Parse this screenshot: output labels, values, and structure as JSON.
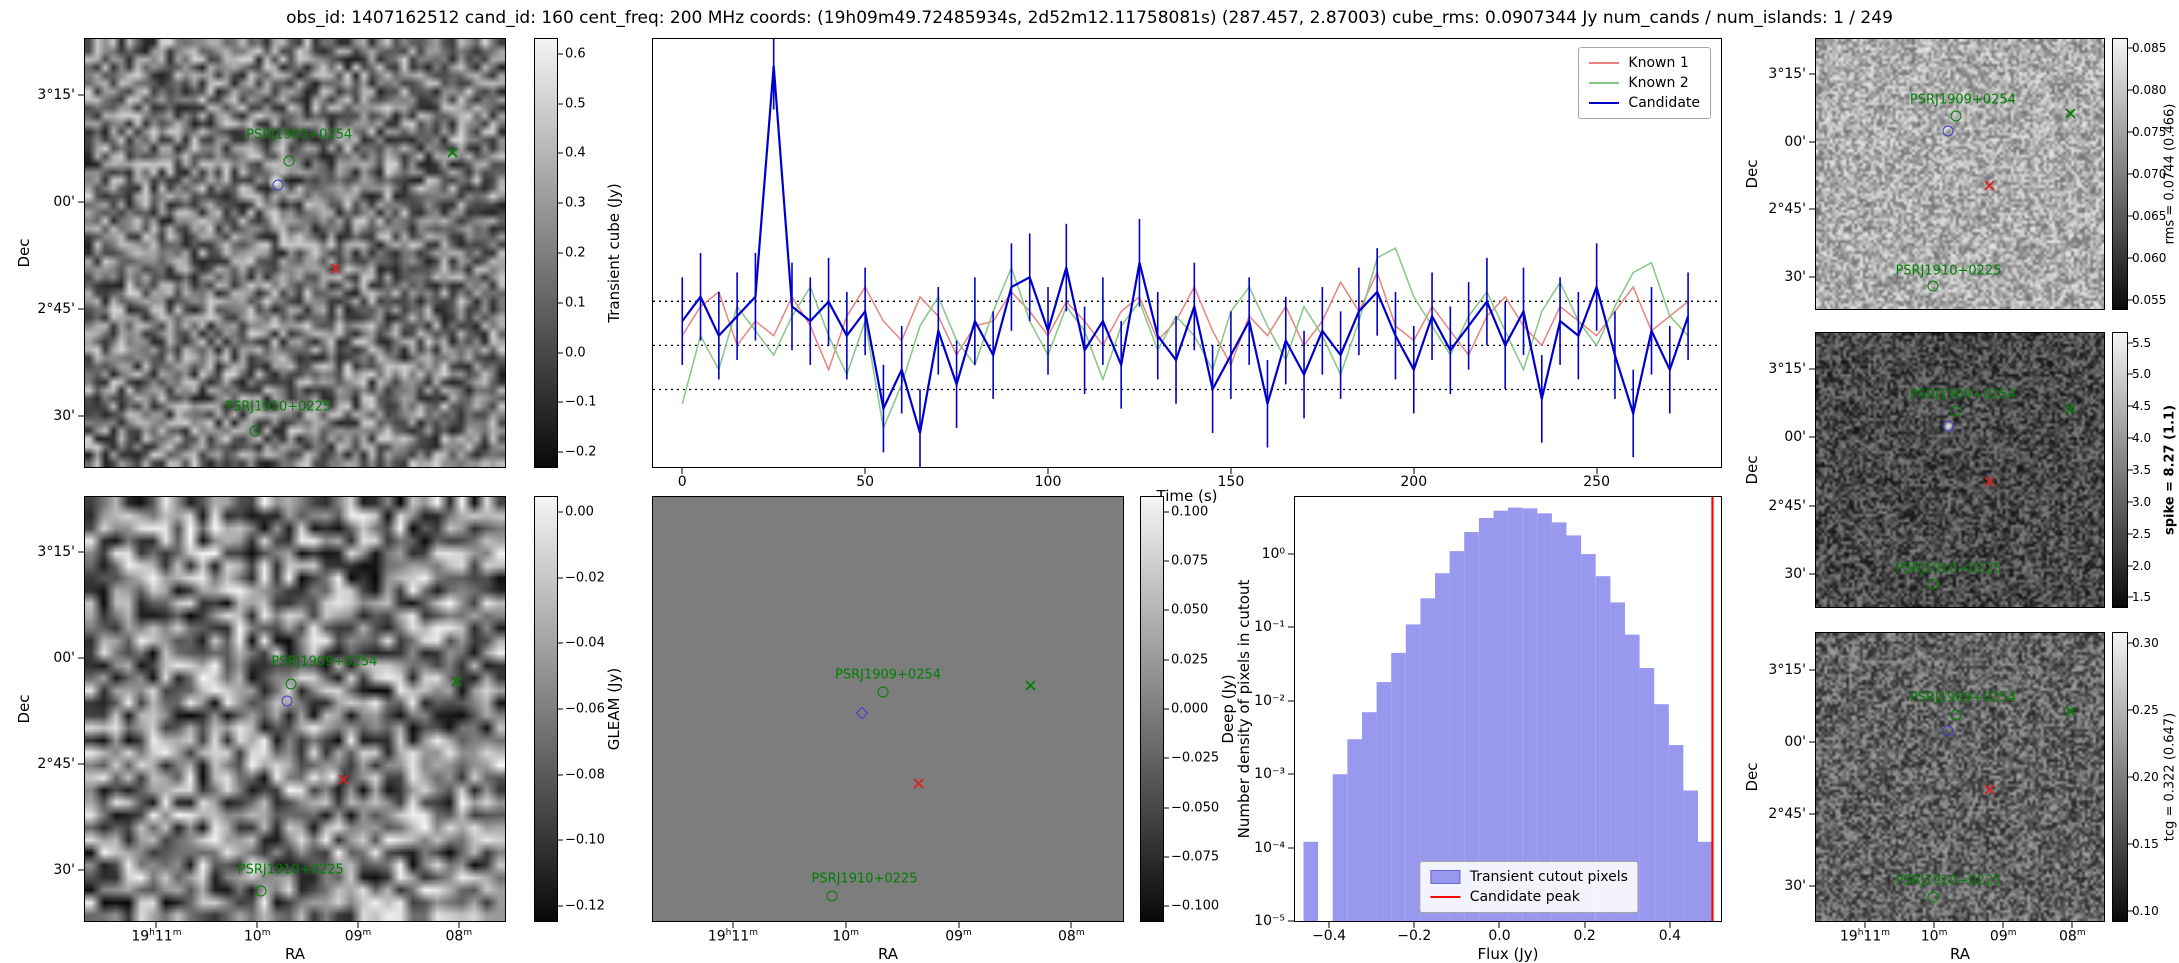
{
  "title": "obs_id: 1407162512 cand_id: 160 cent_freq: 200 MHz coords: (19h09m49.72485934s, 2d52m12.11758081s) (287.457, 2.87003) cube_rms: 0.0907344 Jy num_cands / num_islands: 1 / 249",
  "colors": {
    "known1": "#e8837e",
    "known2": "#85c785",
    "candidate": "#0000cc",
    "hist_fill": "#9898ee",
    "hist_line": "#ff0000",
    "marker_green": "#008000",
    "marker_red": "#e02020",
    "marker_blue": "#3b3bd0",
    "deep_gray": "#7d7d7d"
  },
  "axes": {
    "dec_label": "Dec",
    "ra_label": "RA",
    "dec_ticks": [
      "3°15'",
      "00'",
      "2°45'",
      "30'"
    ],
    "ra_ticks": [
      "19h11m",
      "10m",
      "09m",
      "08m"
    ]
  },
  "panels": {
    "transient_cube": {
      "colorbar_label": "Transient cube (Jy)",
      "colorbar_ticks": [
        "0.6",
        "0.5",
        "0.4",
        "0.3",
        "0.2",
        "0.1",
        "0.0",
        "−0.1",
        "−0.2"
      ]
    },
    "gleam": {
      "colorbar_label": "GLEAM (Jy)",
      "colorbar_ticks": [
        "0.00",
        "−0.02",
        "−0.04",
        "−0.06",
        "−0.08",
        "−0.10",
        "−0.12"
      ]
    },
    "deep": {
      "colorbar_label": "Deep (Jy)",
      "colorbar_ticks": [
        "0.100",
        "0.075",
        "0.050",
        "0.025",
        "0.000",
        "−0.025",
        "−0.050",
        "−0.075",
        "−0.100"
      ]
    },
    "rms": {
      "colorbar_label": "rms = 0.0744 (0.466)",
      "colorbar_ticks": [
        "0.085",
        "0.080",
        "0.075",
        "0.070",
        "0.065",
        "0.060",
        "0.055"
      ]
    },
    "spike": {
      "colorbar_label": "spike = 8.27 (1.1)",
      "bold": true,
      "colorbar_ticks": [
        "5.5",
        "5.0",
        "4.5",
        "4.0",
        "3.5",
        "3.0",
        "2.5",
        "2.0",
        "1.5"
      ]
    },
    "tcg": {
      "colorbar_label": "tcg = 0.322 (0.647)",
      "colorbar_ticks": [
        "0.30",
        "0.25",
        "0.20",
        "0.15",
        "0.10"
      ]
    }
  },
  "sky_markers": [
    {
      "kind": "label",
      "text": "PSRJ1909+0254",
      "color": "marker_green",
      "x": 51,
      "y": 22.5
    },
    {
      "kind": "circle",
      "color": "marker_green",
      "x": 48.5,
      "y": 28.5
    },
    {
      "kind": "x",
      "color": "marker_green",
      "x": 86,
      "y": 25
    },
    {
      "kind": "circle",
      "color": "marker_blue",
      "x": 46,
      "y": 34
    },
    {
      "kind": "x",
      "color": "marker_red",
      "x": 58,
      "y": 52
    },
    {
      "kind": "label",
      "text": "PSRJ1910+0225",
      "color": "marker_green",
      "x": 46,
      "y": 86
    },
    {
      "kind": "circle",
      "color": "marker_green",
      "x": 40.5,
      "y": 91.5
    }
  ],
  "gleam_markers": [
    {
      "kind": "label",
      "text": "PSRJ1909+0254",
      "color": "marker_green",
      "x": 57,
      "y": 39
    },
    {
      "kind": "circle",
      "color": "marker_green",
      "x": 49,
      "y": 44
    },
    {
      "kind": "x",
      "color": "marker_green",
      "x": 87,
      "y": 42
    },
    {
      "kind": "circle",
      "color": "marker_blue",
      "x": 48,
      "y": 48
    },
    {
      "kind": "x",
      "color": "marker_red",
      "x": 60,
      "y": 65
    },
    {
      "kind": "label",
      "text": "PSRJ1910+0225",
      "color": "marker_green",
      "x": 49,
      "y": 88
    },
    {
      "kind": "circle",
      "color": "marker_green",
      "x": 42,
      "y": 93
    }
  ],
  "deep_markers": [
    {
      "kind": "label",
      "text": "PSRJ1909+0254",
      "color": "marker_green",
      "x": 50,
      "y": 42
    },
    {
      "kind": "circle",
      "color": "marker_green",
      "x": 49,
      "y": 46
    },
    {
      "kind": "x",
      "color": "marker_green",
      "x": 79,
      "y": 43
    },
    {
      "kind": "diamond",
      "color": "marker_blue",
      "x": 44.5,
      "y": 51
    },
    {
      "kind": "x",
      "color": "marker_red",
      "x": 55,
      "y": 66
    },
    {
      "kind": "label",
      "text": "PSRJ1910+0225",
      "color": "marker_green",
      "x": 45,
      "y": 90
    },
    {
      "kind": "circle",
      "color": "marker_green",
      "x": 38,
      "y": 94
    }
  ],
  "chart_data": [
    {
      "type": "line",
      "title": "",
      "xlabel": "Time (s)",
      "ylabel": "",
      "xlim": [
        -8,
        284
      ],
      "ylim": [
        -0.25,
        0.63
      ],
      "x_ticks": [
        0,
        50,
        100,
        150,
        200,
        250
      ],
      "hlines": [
        0.0907,
        0.0,
        -0.0907
      ],
      "legend_position": "upper right",
      "x": [
        0,
        5,
        10,
        15,
        20,
        25,
        30,
        35,
        40,
        45,
        50,
        55,
        60,
        65,
        70,
        75,
        80,
        85,
        90,
        95,
        100,
        105,
        110,
        115,
        120,
        125,
        130,
        135,
        140,
        145,
        150,
        155,
        160,
        165,
        170,
        175,
        180,
        185,
        190,
        195,
        200,
        205,
        210,
        215,
        220,
        225,
        230,
        235,
        240,
        245,
        250,
        255,
        260,
        265,
        270,
        275
      ],
      "series": [
        {
          "name": "Known 1",
          "color_key": "known1",
          "values": [
            0.02,
            0.08,
            0.11,
            0.0,
            0.05,
            0.02,
            0.1,
            0.04,
            -0.05,
            0.06,
            0.12,
            0.05,
            0.01,
            0.1,
            0.06,
            -0.02,
            0.04,
            0.05,
            0.11,
            0.07,
            0.02,
            0.09,
            0.05,
            0.0,
            0.07,
            0.1,
            0.01,
            0.05,
            0.12,
            0.03,
            -0.04,
            0.06,
            0.02,
            0.08,
            0.0,
            0.05,
            0.13,
            0.07,
            0.15,
            0.04,
            0.01,
            0.08,
            0.03,
            -0.02,
            0.06,
            0.1,
            0.04,
            0.0,
            0.08,
            0.05,
            0.02,
            0.07,
            0.12,
            0.03,
            0.06,
            0.09
          ]
        },
        {
          "name": "Known 2",
          "color_key": "known2",
          "values": [
            -0.12,
            0.02,
            -0.05,
            0.08,
            0.03,
            -0.02,
            0.06,
            0.12,
            0.02,
            -0.06,
            0.05,
            -0.17,
            -0.08,
            0.04,
            0.1,
            0.01,
            -0.04,
            0.07,
            0.16,
            0.05,
            -0.02,
            0.08,
            0.03,
            -0.07,
            0.04,
            0.09,
            -0.01,
            0.06,
            0.02,
            -0.05,
            0.07,
            0.12,
            0.04,
            -0.03,
            0.08,
            0.02,
            -0.06,
            0.05,
            0.18,
            0.2,
            0.1,
            0.04,
            -0.02,
            0.06,
            0.11,
            0.03,
            -0.05,
            0.07,
            0.13,
            0.05,
            0.0,
            0.08,
            0.15,
            0.17,
            0.06,
            0.02
          ]
        },
        {
          "name": "Candidate",
          "color_key": "candidate",
          "yerr": 0.09,
          "values": [
            0.05,
            0.1,
            0.02,
            0.06,
            0.1,
            0.575,
            0.08,
            0.05,
            0.09,
            0.02,
            0.07,
            -0.13,
            -0.05,
            -0.18,
            0.03,
            -0.08,
            0.05,
            -0.02,
            0.12,
            0.14,
            0.03,
            0.16,
            -0.01,
            0.05,
            -0.04,
            0.17,
            0.02,
            -0.03,
            0.08,
            -0.09,
            -0.02,
            0.05,
            -0.12,
            0.01,
            -0.06,
            0.03,
            -0.02,
            0.07,
            0.11,
            0.02,
            -0.05,
            0.06,
            -0.01,
            0.04,
            0.09,
            0.0,
            0.07,
            -0.11,
            0.05,
            0.02,
            0.12,
            -0.02,
            -0.14,
            0.03,
            -0.05,
            0.06
          ]
        }
      ]
    },
    {
      "type": "bar",
      "xlabel": "Flux (Jy)",
      "ylabel": "Number density of pixels in cutout",
      "xlim": [
        -0.48,
        0.52
      ],
      "ylim_log": [
        1e-05,
        6
      ],
      "x_ticks": [
        "−0.4",
        "−0.2",
        "0.0",
        "0.2",
        "0.4"
      ],
      "x_tick_values": [
        -0.4,
        -0.2,
        0.0,
        0.2,
        0.4
      ],
      "y_ticks": [
        {
          "label": "10⁰",
          "value": 1
        },
        {
          "label": "10⁻¹",
          "value": 0.1
        },
        {
          "label": "10⁻²",
          "value": 0.01
        },
        {
          "label": "10⁻³",
          "value": 0.001
        },
        {
          "label": "10⁻⁴",
          "value": 0.0001
        },
        {
          "label": "10⁻⁵",
          "value": 1e-05
        }
      ],
      "bin_start": -0.46,
      "bin_width": 0.0343,
      "values": [
        0.00012,
        0,
        0.001,
        0.003,
        0.007,
        0.018,
        0.045,
        0.11,
        0.25,
        0.55,
        1.1,
        2.0,
        3.1,
        3.9,
        4.3,
        4.2,
        3.6,
        2.7,
        1.8,
        1.0,
        0.5,
        0.22,
        0.08,
        0.028,
        0.009,
        0.0025,
        0.0006,
        0.00012
      ],
      "vline": {
        "x": 0.5,
        "label": "Candidate peak"
      },
      "legend": [
        "Transient cutout pixels",
        "Candidate peak"
      ]
    }
  ]
}
